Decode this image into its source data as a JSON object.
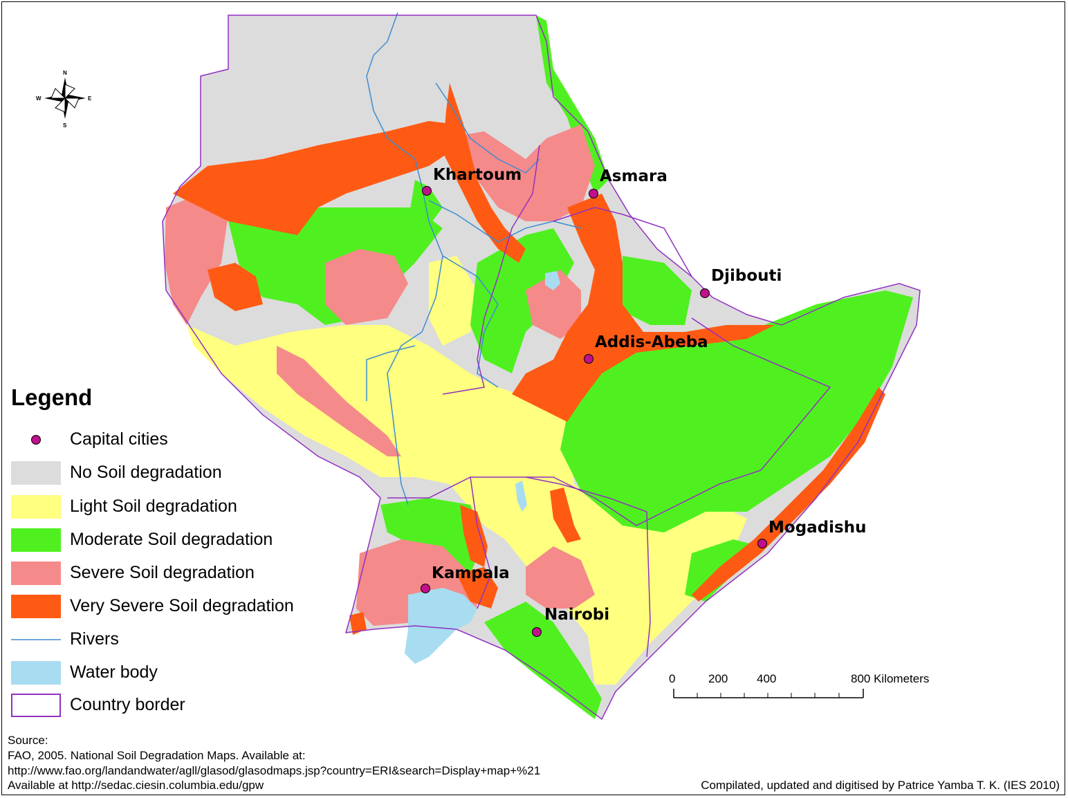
{
  "legend": {
    "title": "Legend",
    "items": [
      {
        "label": "Capital cities",
        "kind": "point",
        "color": "#c0108a"
      },
      {
        "label": "No Soil degradation",
        "kind": "fill",
        "color": "#dcdcdc"
      },
      {
        "label": "Light Soil degradation",
        "kind": "fill",
        "color": "#ffff80"
      },
      {
        "label": "Moderate Soil degradation",
        "kind": "fill",
        "color": "#50f020"
      },
      {
        "label": "Severe Soil degradation",
        "kind": "fill",
        "color": "#f58a8a"
      },
      {
        "label": "Very Severe Soil degradation",
        "kind": "fill",
        "color": "#ff5a14"
      },
      {
        "label": "Rivers",
        "kind": "line",
        "color": "#3c8cd2"
      },
      {
        "label": "Water body",
        "kind": "fill",
        "color": "#a8dcf0"
      },
      {
        "label": "Country border",
        "kind": "outline",
        "color": "#9030c0"
      }
    ]
  },
  "cities": [
    {
      "name": "Khartoum"
    },
    {
      "name": "Asmara"
    },
    {
      "name": "Djibouti"
    },
    {
      "name": "Addis-Abeba"
    },
    {
      "name": "Mogadishu"
    },
    {
      "name": "Kampala"
    },
    {
      "name": "Nairobi"
    }
  ],
  "scale_bar": {
    "ticks": [
      "0",
      "200",
      "400",
      "800 Kilometers"
    ]
  },
  "compass": {
    "n": "N",
    "s": "S",
    "e": "E",
    "w": "W",
    "icon": "compass-rose-icon"
  },
  "source": {
    "line1": "Source:",
    "line2": "FAO, 2005. National Soil Degradation Maps. Available at:",
    "line3": "http://www.fao.org/landandwater/agll/glasod/glasodmaps.jsp?country=ERI&search=Display+map+%21",
    "line4": "Available at http://sedac.ciesin.columbia.edu/gpw"
  },
  "credit": "Compilated, updated and digitised by Patrice Yamba T. K. (IES 2010)"
}
